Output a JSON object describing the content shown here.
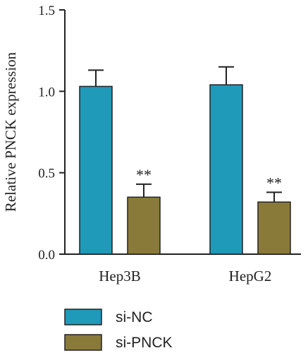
{
  "chart_data": {
    "type": "bar",
    "categories": [
      "Hep3B",
      "HepG2"
    ],
    "series": [
      {
        "name": "si-NC",
        "values": [
          1.03,
          1.04
        ],
        "errors": [
          0.1,
          0.11
        ],
        "color": "#1f9ab8"
      },
      {
        "name": "si-PNCK",
        "values": [
          0.35,
          0.32
        ],
        "errors": [
          0.08,
          0.06
        ],
        "color": "#8a7a3a",
        "annotations": [
          "**",
          "**"
        ]
      }
    ],
    "ylabel": "Relative PNCK expression",
    "xlabel": "",
    "ylim": [
      0,
      1.5
    ],
    "yticks": [
      0.0,
      0.5,
      1.0,
      1.5
    ],
    "ytick_labels": [
      "0.0",
      "0.5",
      "1.0",
      "1.5"
    ],
    "grid": false,
    "legend": "bottom-left"
  }
}
